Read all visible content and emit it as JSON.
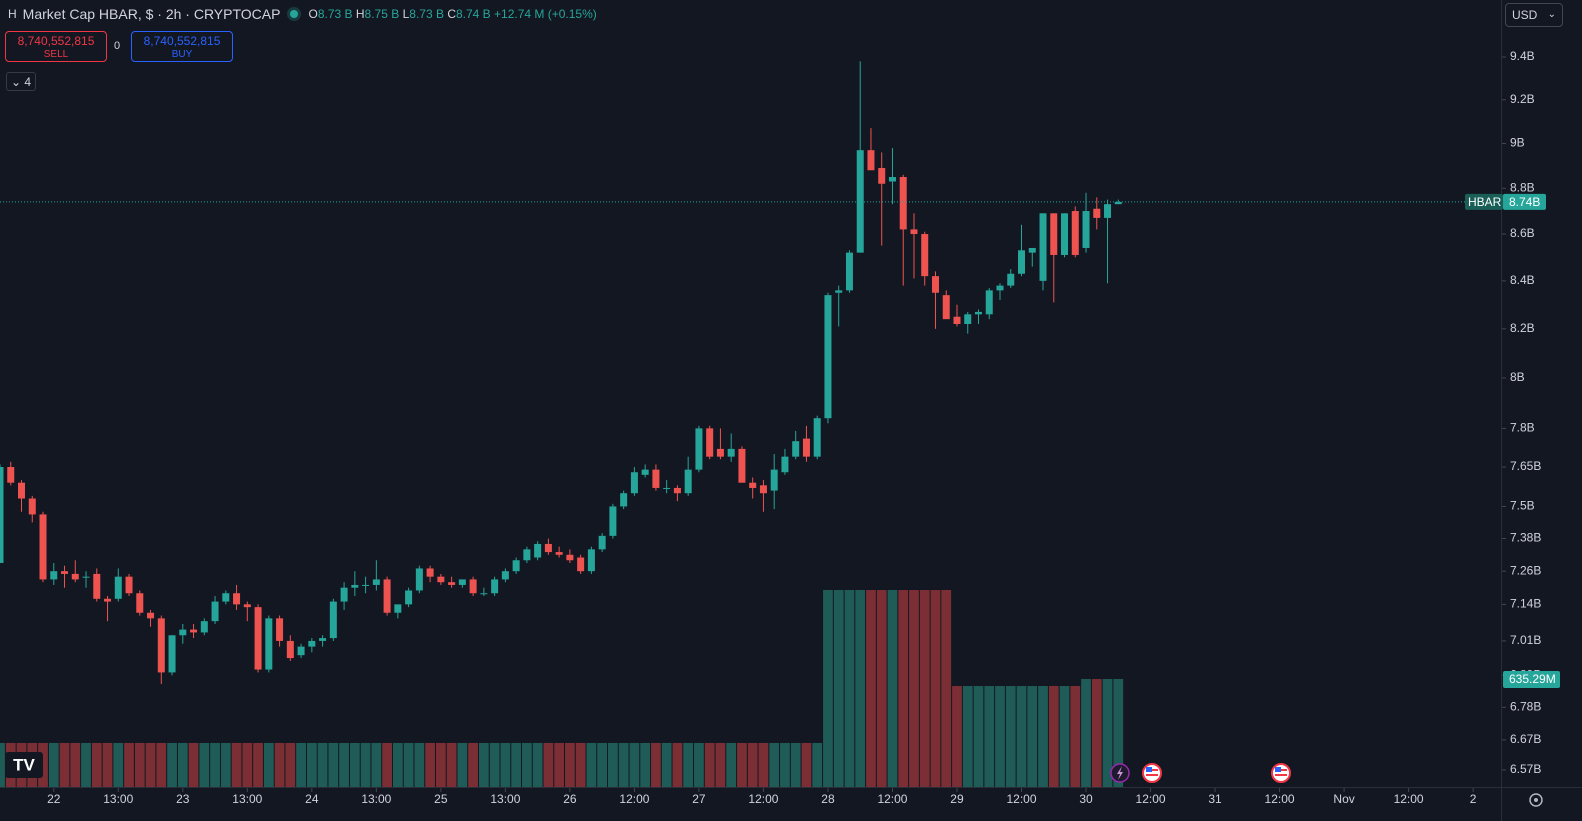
{
  "header": {
    "symbol_icon": "H",
    "title": "Market Cap HBAR, $ · 2h · CRYPTOCAP",
    "ohlc": [
      {
        "key": "O",
        "value": "8.73 B"
      },
      {
        "key": "H",
        "value": "8.75 B"
      },
      {
        "key": "L",
        "value": "8.73 B"
      },
      {
        "key": "C",
        "value": "8.74 B"
      }
    ],
    "change": "+12.74 M (+0.15%)"
  },
  "trade": {
    "sell": {
      "price": "8,740,552,815",
      "label": "SELL"
    },
    "spread": "0",
    "buy": {
      "price": "8,740,552,815",
      "label": "BUY"
    }
  },
  "indicators_count": 4,
  "currency": "USD",
  "chart_data": {
    "type": "candlestick",
    "log_scale": true,
    "grid": false,
    "up_color": "#26a69a",
    "down_color": "#ef5350",
    "volume_up_color": "#1f5c58",
    "volume_down_color": "#7b2f34",
    "open": [
      7290000000.0,
      7650000000.0,
      7590000000.0,
      7530000000.0,
      7470000000.0,
      7230000000.0,
      7260000000.0,
      7250000000.0,
      7240000000.0,
      7250000000.0,
      7160000000.0,
      7160000000.0,
      7240000000.0,
      7180000000.0,
      7110000000.0,
      7090000000.0,
      6900000000.0,
      7030000000.0,
      7050000000.0,
      7040000000.0,
      7080000000.0,
      7150000000.0,
      7180000000.0,
      7140000000.0,
      7130000000.0,
      6910000000.0,
      7090000000.0,
      7010000000.0,
      6960000000.0,
      6990000000.0,
      7010000000.0,
      7020000000.0,
      7150000000.0,
      7200000000.0,
      7210000000.0,
      7210000000.0,
      7230000000.0,
      7110000000.0,
      7140000000.0,
      7190000000.0,
      7270000000.0,
      7240000000.0,
      7220000000.0,
      7210000000.0,
      7230000000.0,
      7180000000.0,
      7180000000.0,
      7230000000.0,
      7260000000.0,
      7300000000.0,
      7310000000.0,
      7360000000.0,
      7330000000.0,
      7320000000.0,
      7310000000.0,
      7260000000.0,
      7340000000.0,
      7390000000.0,
      7500000000.0,
      7550000000.0,
      7620000000.0,
      7640000000.0,
      7570000000.0,
      7570000000.0,
      7550000000.0,
      7640000000.0,
      7800000000.0,
      7720000000.0,
      7690000000.0,
      7720000000.0,
      7590000000.0,
      7580000000.0,
      7560000000.0,
      7630000000.0,
      7690000000.0,
      7760000000.0,
      7690000000.0,
      7840000000.0,
      8350000000.0,
      8360000000.0,
      8520000000.0,
      8970000000.0,
      8890000000.0,
      8830000000.0,
      8850000000.0,
      8620000000.0,
      8600000000.0,
      8420000000.0,
      8340000000.0,
      8250000000.0,
      8220000000.0,
      8260000000.0,
      8260000000.0,
      8360000000.0,
      8380000000.0,
      8430000000.0,
      8520000000.0,
      8400000000.0,
      8690000000.0,
      8510000000.0,
      8700000000.0,
      8540000000.0,
      8710000000.0,
      8670000000.0,
      8730000000.0
    ],
    "high": [
      7660000000.0,
      7670000000.0,
      7600000000.0,
      7540000000.0,
      7480000000.0,
      7290000000.0,
      7280000000.0,
      7300000000.0,
      7260000000.0,
      7270000000.0,
      7170000000.0,
      7270000000.0,
      7250000000.0,
      7190000000.0,
      7120000000.0,
      7100000000.0,
      7030000000.0,
      7070000000.0,
      7070000000.0,
      7090000000.0,
      7170000000.0,
      7190000000.0,
      7210000000.0,
      7150000000.0,
      7140000000.0,
      7100000000.0,
      7100000000.0,
      7030000000.0,
      7000000000.0,
      7020000000.0,
      7030000000.0,
      7160000000.0,
      7220000000.0,
      7260000000.0,
      7240000000.0,
      7300000000.0,
      7240000000.0,
      7130000000.0,
      7200000000.0,
      7280000000.0,
      7280000000.0,
      7250000000.0,
      7240000000.0,
      7230000000.0,
      7240000000.0,
      7200000000.0,
      7240000000.0,
      7270000000.0,
      7310000000.0,
      7350000000.0,
      7370000000.0,
      7380000000.0,
      7350000000.0,
      7340000000.0,
      7320000000.0,
      7350000000.0,
      7400000000.0,
      7510000000.0,
      7560000000.0,
      7650000000.0,
      7660000000.0,
      7660000000.0,
      7600000000.0,
      7580000000.0,
      7690000000.0,
      7810000000.0,
      7810000000.0,
      7800000000.0,
      7780000000.0,
      7730000000.0,
      7610000000.0,
      7600000000.0,
      7700000000.0,
      7720000000.0,
      7790000000.0,
      7810000000.0,
      7850000000.0,
      8350000000.0,
      8380000000.0,
      8530000000.0,
      9380000000.0,
      9070000000.0,
      8960000000.0,
      8980000000.0,
      8860000000.0,
      8690000000.0,
      8610000000.0,
      8440000000.0,
      8360000000.0,
      8300000000.0,
      8270000000.0,
      8280000000.0,
      8370000000.0,
      8390000000.0,
      8450000000.0,
      8640000000.0,
      8540000000.0,
      8690000000.0,
      8690000000.0,
      8690000000.0,
      8720000000.0,
      8780000000.0,
      8760000000.0,
      8750000000.0,
      8750000000.0
    ],
    "low": [
      7290000000.0,
      7580000000.0,
      7480000000.0,
      7440000000.0,
      7220000000.0,
      7210000000.0,
      7200000000.0,
      7220000000.0,
      7200000000.0,
      7150000000.0,
      7080000000.0,
      7150000000.0,
      7170000000.0,
      7100000000.0,
      7060000000.0,
      6860000000.0,
      6890000000.0,
      7000000000.0,
      7020000000.0,
      7030000000.0,
      7070000000.0,
      7140000000.0,
      7120000000.0,
      7080000000.0,
      6900000000.0,
      6900000000.0,
      6990000000.0,
      6940000000.0,
      6950000000.0,
      6970000000.0,
      6990000000.0,
      7010000000.0,
      7120000000.0,
      7170000000.0,
      7180000000.0,
      7190000000.0,
      7100000000.0,
      7090000000.0,
      7130000000.0,
      7180000000.0,
      7220000000.0,
      7210000000.0,
      7200000000.0,
      7200000000.0,
      7170000000.0,
      7170000000.0,
      7170000000.0,
      7220000000.0,
      7250000000.0,
      7290000000.0,
      7300000000.0,
      7320000000.0,
      7310000000.0,
      7290000000.0,
      7250000000.0,
      7250000000.0,
      7330000000.0,
      7380000000.0,
      7490000000.0,
      7540000000.0,
      7610000000.0,
      7560000000.0,
      7550000000.0,
      7520000000.0,
      7540000000.0,
      7630000000.0,
      7680000000.0,
      7680000000.0,
      7670000000.0,
      7590000000.0,
      7530000000.0,
      7480000000.0,
      7490000000.0,
      7620000000.0,
      7680000000.0,
      7670000000.0,
      7680000000.0,
      7820000000.0,
      8210000000.0,
      8350000000.0,
      8520000000.0,
      8890000000.0,
      8550000000.0,
      8730000000.0,
      8380000000.0,
      8410000000.0,
      8380000000.0,
      8200000000.0,
      8270000000.0,
      8210000000.0,
      8180000000.0,
      8220000000.0,
      8240000000.0,
      8320000000.0,
      8370000000.0,
      8420000000.0,
      8460000000.0,
      8360000000.0,
      8310000000.0,
      8500000000.0,
      8500000000.0,
      8520000000.0,
      8620000000.0,
      8390000000.0,
      8730000000.0
    ],
    "close": [
      7650000000.0,
      7590000000.0,
      7530000000.0,
      7470000000.0,
      7230000000.0,
      7260000000.0,
      7250000000.0,
      7230000000.0,
      7240000000.0,
      7160000000.0,
      7150000000.0,
      7240000000.0,
      7180000000.0,
      7110000000.0,
      7090000000.0,
      6900000000.0,
      7030000000.0,
      7050000000.0,
      7040000000.0,
      7080000000.0,
      7150000000.0,
      7180000000.0,
      7140000000.0,
      7130000000.0,
      6910000000.0,
      7090000000.0,
      7010000000.0,
      6950000000.0,
      6990000000.0,
      7010000000.0,
      7020000000.0,
      7150000000.0,
      7200000000.0,
      7210000000.0,
      7210000000.0,
      7230000000.0,
      7110000000.0,
      7140000000.0,
      7190000000.0,
      7270000000.0,
      7240000000.0,
      7220000000.0,
      7210000000.0,
      7230000000.0,
      7180000000.0,
      7180000000.0,
      7230000000.0,
      7260000000.0,
      7300000000.0,
      7340000000.0,
      7360000000.0,
      7330000000.0,
      7320000000.0,
      7300000000.0,
      7260000000.0,
      7340000000.0,
      7390000000.0,
      7500000000.0,
      7550000000.0,
      7630000000.0,
      7640000000.0,
      7570000000.0,
      7570000000.0,
      7550000000.0,
      7640000000.0,
      7800000000.0,
      7690000000.0,
      7690000000.0,
      7720000000.0,
      7590000000.0,
      7570000000.0,
      7550000000.0,
      7640000000.0,
      7690000000.0,
      7750000000.0,
      7690000000.0,
      7840000000.0,
      8340000000.0,
      8360000000.0,
      8520000000.0,
      8970000000.0,
      8880000000.0,
      8820000000.0,
      8850000000.0,
      8620000000.0,
      8600000000.0,
      8420000000.0,
      8350000000.0,
      8240000000.0,
      8220000000.0,
      8260000000.0,
      8270000000.0,
      8360000000.0,
      8380000000.0,
      8430000000.0,
      8530000000.0,
      8540000000.0,
      8690000000.0,
      8510000000.0,
      8690000000.0,
      8510000000.0,
      8700000000.0,
      8670000000.0,
      8730000000.0,
      8740000000.0
    ],
    "volume": [
      259000000.0,
      259000000.0,
      259000000.0,
      259000000.0,
      259000000.0,
      259000000.0,
      259000000.0,
      259000000.0,
      259000000.0,
      259000000.0,
      259000000.0,
      259000000.0,
      259000000.0,
      259000000.0,
      259000000.0,
      259000000.0,
      259000000.0,
      259000000.0,
      259000000.0,
      259000000.0,
      259000000.0,
      259000000.0,
      259000000.0,
      259000000.0,
      259000000.0,
      259000000.0,
      259000000.0,
      259000000.0,
      259000000.0,
      259000000.0,
      259000000.0,
      259000000.0,
      259000000.0,
      259000000.0,
      259000000.0,
      259000000.0,
      259000000.0,
      259000000.0,
      259000000.0,
      259000000.0,
      259000000.0,
      259000000.0,
      259000000.0,
      259000000.0,
      259000000.0,
      259000000.0,
      259000000.0,
      259000000.0,
      259000000.0,
      259000000.0,
      259000000.0,
      259000000.0,
      259000000.0,
      259000000.0,
      259000000.0,
      259000000.0,
      259000000.0,
      259000000.0,
      259000000.0,
      259000000.0,
      259000000.0,
      259000000.0,
      259000000.0,
      259000000.0,
      259000000.0,
      259000000.0,
      259000000.0,
      259000000.0,
      259000000.0,
      259000000.0,
      259000000.0,
      259000000.0,
      259000000.0,
      259000000.0,
      259000000.0,
      259000000.0,
      259000000.0,
      1159000000.0,
      1159000000.0,
      1159000000.0,
      1159000000.0,
      1159000000.0,
      1159000000.0,
      1159000000.0,
      1159000000.0,
      1159000000.0,
      1159000000.0,
      1159000000.0,
      1159000000.0,
      594000000.0,
      594000000.0,
      594000000.0,
      594000000.0,
      594000000.0,
      594000000.0,
      594000000.0,
      594000000.0,
      594000000.0,
      594000000.0,
      594000000.0,
      594000000.0,
      635290000.0,
      635290000.0,
      635290000.0,
      635290000.0
    ],
    "volume_labels": [
      null,
      null,
      null,
      null,
      null,
      null,
      null,
      null,
      null,
      null,
      null,
      null,
      null,
      null,
      null,
      null,
      null,
      null,
      null,
      null,
      null,
      null,
      null,
      null,
      null,
      null,
      null,
      null,
      null,
      null,
      null,
      null,
      null,
      null,
      null,
      null,
      null,
      null,
      null,
      null,
      null,
      null,
      null,
      null,
      null,
      null,
      null,
      null,
      null,
      null,
      null,
      null,
      null,
      null,
      null,
      null,
      null,
      null,
      null,
      null,
      null,
      null,
      null,
      null,
      null,
      null,
      null,
      null,
      null,
      null,
      null,
      null,
      null,
      null,
      null,
      null,
      null,
      null,
      null,
      null,
      null,
      null,
      null,
      null,
      null,
      null,
      null,
      null,
      null,
      null,
      null,
      null,
      null,
      null,
      null,
      null,
      null,
      null,
      null,
      null,
      null,
      null,
      null,
      null,
      "635.29M"
    ],
    "price_line": {
      "name": "HBAR",
      "value": 8740000000.0,
      "label": "8.74B",
      "color": "#26a69a"
    },
    "xlim": [
      0,
      139.5
    ],
    "xticks": [
      {
        "value": 5,
        "label": "22"
      },
      {
        "value": 11,
        "label": "13:00"
      },
      {
        "value": 17,
        "label": "23"
      },
      {
        "value": 23,
        "label": "13:00"
      },
      {
        "value": 29,
        "label": "24"
      },
      {
        "value": 35,
        "label": "13:00"
      },
      {
        "value": 41,
        "label": "25"
      },
      {
        "value": 47,
        "label": "13:00"
      },
      {
        "value": 53,
        "label": "26"
      },
      {
        "value": 59,
        "label": "12:00"
      },
      {
        "value": 65,
        "label": "27"
      },
      {
        "value": 71,
        "label": "12:00"
      },
      {
        "value": 77,
        "label": "28"
      },
      {
        "value": 83,
        "label": "12:00"
      },
      {
        "value": 89,
        "label": "29"
      },
      {
        "value": 95,
        "label": "12:00"
      },
      {
        "value": 101,
        "label": "30"
      },
      {
        "value": 107,
        "label": "12:00"
      },
      {
        "value": 113,
        "label": "31"
      },
      {
        "value": 119,
        "label": "12:00"
      },
      {
        "value": 125,
        "label": "Nov"
      },
      {
        "value": 131,
        "label": "12:00"
      },
      {
        "value": 137,
        "label": "2"
      }
    ],
    "ylim": [
      6514000000.0,
      9673000000.0
    ],
    "yticks": [
      {
        "value": 9400000000.0,
        "label": "9.4B"
      },
      {
        "value": 9200000000.0,
        "label": "9.2B"
      },
      {
        "value": 9000000000.0,
        "label": "9B"
      },
      {
        "value": 8800000000.0,
        "label": "8.8B"
      },
      {
        "value": 8600000000.0,
        "label": "8.6B"
      },
      {
        "value": 8400000000.0,
        "label": "8.4B"
      },
      {
        "value": 8200000000.0,
        "label": "8.2B"
      },
      {
        "value": 8000000000.0,
        "label": "8B"
      },
      {
        "value": 7800000000.0,
        "label": "7.8B"
      },
      {
        "value": 7650000000.0,
        "label": "7.65B"
      },
      {
        "value": 7500000000.0,
        "label": "7.5B"
      },
      {
        "value": 7380000000.0,
        "label": "7.38B"
      },
      {
        "value": 7260000000.0,
        "label": "7.26B"
      },
      {
        "value": 7140000000.0,
        "label": "7.14B"
      },
      {
        "value": 7010000000.0,
        "label": "7.01B"
      },
      {
        "value": 6890000000.0,
        "label": "6.89B"
      },
      {
        "value": 6780000000.0,
        "label": "6.78B"
      },
      {
        "value": 6670000000.0,
        "label": "6.67B"
      },
      {
        "value": 6570000000.0,
        "label": "6.57B"
      }
    ],
    "y2lim": [
      0,
      4630000000.0
    ]
  }
}
